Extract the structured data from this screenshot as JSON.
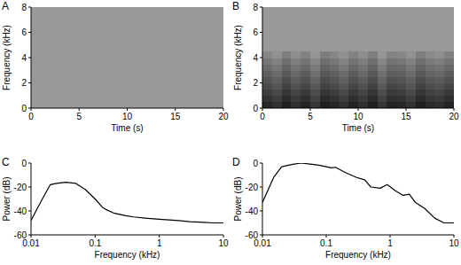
{
  "chart_data": [
    {
      "type": "heatmap",
      "title": "A",
      "x_label": "Time (s)",
      "y_label": "Frequency (kHz)",
      "xlim": [
        0,
        20
      ],
      "ylim": [
        0,
        8
      ],
      "xticks": [
        0,
        5,
        10,
        15,
        20
      ],
      "yticks": [
        0,
        2,
        4,
        6,
        8
      ],
      "zlim": [
        -50,
        0
      ],
      "cells": [
        [
          -35
        ]
      ]
    },
    {
      "type": "heatmap",
      "title": "B",
      "x_label": "Time (s)",
      "y_label": "Frequency (kHz)",
      "xlim": [
        0,
        20
      ],
      "ylim": [
        0,
        8
      ],
      "xticks": [
        0,
        5,
        10,
        15,
        20
      ],
      "yticks": [
        0,
        2,
        4,
        6,
        8
      ],
      "zlim": [
        -50,
        0
      ],
      "cells": [
        [
          -5,
          -8,
          -3,
          -7,
          -4,
          -9,
          -3,
          -5,
          -8,
          -4,
          -7,
          -3,
          -9,
          -4,
          -5,
          -8,
          -3,
          -6,
          -7,
          -4
        ],
        [
          -8,
          -11,
          -6,
          -10,
          -7,
          -12,
          -6,
          -8,
          -11,
          -7,
          -10,
          -6,
          -12,
          -7,
          -8,
          -11,
          -6,
          -9,
          -10,
          -7
        ],
        [
          -11,
          -14,
          -9,
          -13,
          -10,
          -15,
          -9,
          -11,
          -14,
          -10,
          -13,
          -9,
          -15,
          -10,
          -11,
          -14,
          -9,
          -12,
          -13,
          -10
        ],
        [
          -14,
          -17,
          -12,
          -16,
          -13,
          -18,
          -12,
          -14,
          -17,
          -13,
          -16,
          -12,
          -18,
          -13,
          -14,
          -17,
          -12,
          -15,
          -16,
          -13
        ],
        [
          -17,
          -20,
          -15,
          -19,
          -16,
          -21,
          -15,
          -17,
          -20,
          -16,
          -19,
          -15,
          -21,
          -16,
          -17,
          -20,
          -15,
          -18,
          -19,
          -16
        ],
        [
          -20,
          -23,
          -18,
          -22,
          -19,
          -24,
          -18,
          -20,
          -23,
          -19,
          -22,
          -18,
          -24,
          -19,
          -20,
          -23,
          -18,
          -21,
          -22,
          -19
        ],
        [
          -23,
          -26,
          -21,
          -25,
          -22,
          -27,
          -21,
          -23,
          -26,
          -22,
          -25,
          -21,
          -27,
          -22,
          -23,
          -26,
          -21,
          -24,
          -25,
          -22
        ],
        [
          -26,
          -29,
          -24,
          -28,
          -25,
          -30,
          -24,
          -26,
          -29,
          -25,
          -28,
          -24,
          -30,
          -25,
          -26,
          -29,
          -24,
          -27,
          -28,
          -25
        ],
        [
          -30,
          -33,
          -28,
          -32,
          -29,
          -34,
          -28,
          -30,
          -33,
          -29,
          -32,
          -28,
          -34,
          -29,
          -30,
          -33,
          -28,
          -31,
          -32,
          -29
        ],
        [
          -35,
          -35,
          -35,
          -35,
          -35,
          -35,
          -35,
          -35,
          -35,
          -35,
          -35,
          -35,
          -35,
          -35,
          -35,
          -35,
          -35,
          -35,
          -35,
          -35
        ],
        [
          -35,
          -35,
          -35,
          -35,
          -35,
          -35,
          -35,
          -35,
          -35,
          -35,
          -35,
          -35,
          -35,
          -35,
          -35,
          -35,
          -35,
          -35,
          -35,
          -35
        ],
        [
          -35,
          -35,
          -35,
          -35,
          -35,
          -35,
          -35,
          -35,
          -35,
          -35,
          -35,
          -35,
          -35,
          -35,
          -35,
          -35,
          -35,
          -35,
          -35,
          -35
        ],
        [
          -35,
          -35,
          -35,
          -35,
          -35,
          -35,
          -35,
          -35,
          -35,
          -35,
          -35,
          -35,
          -35,
          -35,
          -35,
          -35,
          -35,
          -35,
          -35,
          -35
        ],
        [
          -35,
          -35,
          -35,
          -35,
          -35,
          -35,
          -35,
          -35,
          -35,
          -35,
          -35,
          -35,
          -35,
          -35,
          -35,
          -35,
          -35,
          -35,
          -35,
          -35
        ],
        [
          -35,
          -35,
          -35,
          -35,
          -35,
          -35,
          -35,
          -35,
          -35,
          -35,
          -35,
          -35,
          -35,
          -35,
          -35,
          -35,
          -35,
          -35,
          -35,
          -35
        ],
        [
          -35,
          -35,
          -35,
          -35,
          -35,
          -35,
          -35,
          -35,
          -35,
          -35,
          -35,
          -35,
          -35,
          -35,
          -35,
          -35,
          -35,
          -35,
          -35,
          -35
        ]
      ]
    },
    {
      "type": "line",
      "title": "C",
      "x_label": "Frequency (kHz)",
      "y_label": "Power (dB)",
      "log": "x",
      "color": "#000000",
      "xlim": [
        0.01,
        10
      ],
      "ylim": [
        -60,
        0
      ],
      "xticks": [
        0.01,
        0.1,
        1,
        10
      ],
      "yticks": [
        -60,
        -40,
        -20,
        0
      ],
      "x": [
        0.01,
        0.015,
        0.02,
        0.025,
        0.035,
        0.05,
        0.07,
        0.1,
        0.13,
        0.15,
        0.2,
        0.3,
        0.4,
        0.6,
        1,
        2,
        3,
        5,
        7,
        10
      ],
      "values": [
        -48,
        -30,
        -18,
        -17,
        -16,
        -17,
        -22,
        -30,
        -37,
        -39,
        -42,
        -44,
        -45,
        -46,
        -47,
        -48,
        -49,
        -49.5,
        -50,
        -50
      ]
    },
    {
      "type": "line",
      "title": "D",
      "x_label": "Frequency (kHz)",
      "y_label": "Power (dB)",
      "log": "x",
      "color": "#000000",
      "xlim": [
        0.01,
        10
      ],
      "ylim": [
        -60,
        0
      ],
      "xticks": [
        0.01,
        0.1,
        1,
        10
      ],
      "yticks": [
        -60,
        -40,
        -20,
        0
      ],
      "x": [
        0.01,
        0.015,
        0.02,
        0.03,
        0.04,
        0.06,
        0.08,
        0.1,
        0.12,
        0.14,
        0.2,
        0.3,
        0.4,
        0.5,
        0.7,
        0.9,
        1.2,
        1.6,
        2,
        2.5,
        3.5,
        5,
        7,
        10
      ],
      "values": [
        -33,
        -12,
        -3,
        -1,
        0,
        -1,
        -2,
        -3,
        -4,
        -3.5,
        -8,
        -12,
        -14,
        -20,
        -21,
        -18,
        -23,
        -27,
        -26,
        -33,
        -38,
        -46,
        -50,
        -50
      ]
    }
  ]
}
